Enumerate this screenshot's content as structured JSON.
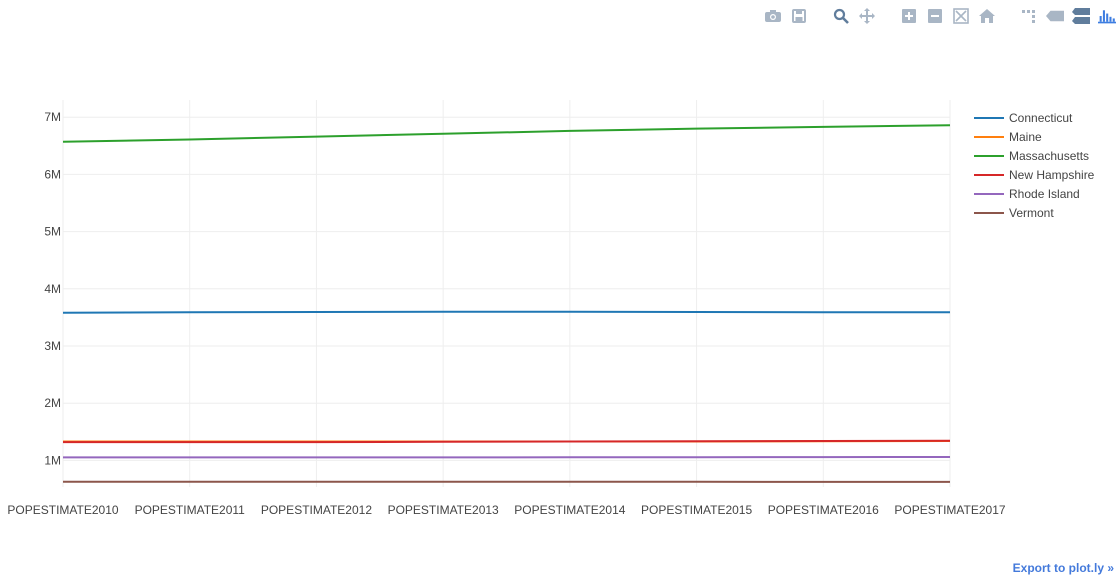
{
  "modebar": {
    "buttons": [
      {
        "icon": "camera-icon"
      },
      {
        "icon": "save-icon"
      },
      {
        "icon": "zoom-icon"
      },
      {
        "icon": "pan-icon"
      },
      {
        "icon": "zoom-in-icon"
      },
      {
        "icon": "zoom-out-icon"
      },
      {
        "icon": "autoscale-icon"
      },
      {
        "icon": "home-icon"
      },
      {
        "icon": "spike-lines-icon"
      },
      {
        "icon": "hover-closest-icon"
      },
      {
        "icon": "hover-compare-icon"
      },
      {
        "icon": "plotly-logo-icon"
      }
    ],
    "icon_color": "#a9b6c5",
    "active_color": "#607d9c",
    "logo_color": "#3d7de1"
  },
  "export_link": "Export to plot.ly »",
  "chart_data": {
    "type": "line",
    "title": "",
    "xlabel": "",
    "ylabel": "",
    "categories": [
      "POPESTIMATE2010",
      "POPESTIMATE2011",
      "POPESTIMATE2012",
      "POPESTIMATE2013",
      "POPESTIMATE2014",
      "POPESTIMATE2015",
      "POPESTIMATE2016",
      "POPESTIMATE2017"
    ],
    "ylim": [
      0,
      7150000
    ],
    "yticks": [
      {
        "value": 1000000,
        "label": "1M"
      },
      {
        "value": 2000000,
        "label": "2M"
      },
      {
        "value": 3000000,
        "label": "3M"
      },
      {
        "value": 4000000,
        "label": "4M"
      },
      {
        "value": 5000000,
        "label": "5M"
      },
      {
        "value": 6000000,
        "label": "6M"
      },
      {
        "value": 7000000,
        "label": "7M"
      }
    ],
    "grid": true,
    "legend_position": "right",
    "series": [
      {
        "name": "Connecticut",
        "color": "#1f77b4",
        "values": [
          3580000,
          3590000,
          3595000,
          3600000,
          3600000,
          3595000,
          3590000,
          3590000
        ]
      },
      {
        "name": "Maine",
        "color": "#ff7f0e",
        "values": [
          1330000,
          1330000,
          1330000,
          1330000,
          1330000,
          1330000,
          1335000,
          1340000
        ]
      },
      {
        "name": "Massachusetts",
        "color": "#2ca02c",
        "values": [
          6570000,
          6610000,
          6660000,
          6710000,
          6760000,
          6800000,
          6830000,
          6860000
        ]
      },
      {
        "name": "New Hampshire",
        "color": "#d62728",
        "values": [
          1320000,
          1320000,
          1320000,
          1325000,
          1330000,
          1335000,
          1340000,
          1345000
        ]
      },
      {
        "name": "Rhode Island",
        "color": "#9467bd",
        "values": [
          1053000,
          1052000,
          1052000,
          1053000,
          1055000,
          1056000,
          1057000,
          1060000
        ]
      },
      {
        "name": "Vermont",
        "color": "#8c564b",
        "values": [
          626000,
          627000,
          626000,
          627000,
          626000,
          626000,
          624000,
          624000
        ]
      }
    ]
  }
}
